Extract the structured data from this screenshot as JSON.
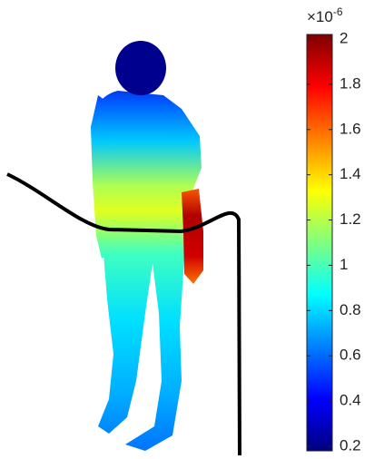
{
  "chart_data": {
    "type": "colorbar-figure",
    "colormap": "jet",
    "clim": [
      0.18,
      2.02
    ],
    "cticks": [
      0.2,
      0.4,
      0.6,
      0.8,
      1,
      1.2,
      1.4,
      1.6,
      1.8,
      2
    ],
    "colorbar_multiplier": "×10",
    "colorbar_exponent": "-6"
  }
}
